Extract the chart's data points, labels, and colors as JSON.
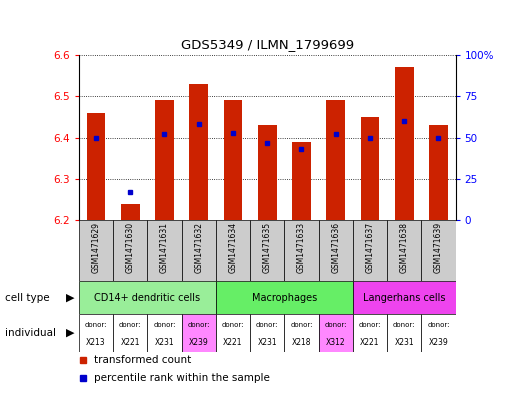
{
  "title": "GDS5349 / ILMN_1799699",
  "samples": [
    "GSM1471629",
    "GSM1471630",
    "GSM1471631",
    "GSM1471632",
    "GSM1471634",
    "GSM1471635",
    "GSM1471633",
    "GSM1471636",
    "GSM1471637",
    "GSM1471638",
    "GSM1471639"
  ],
  "bar_values": [
    6.46,
    6.24,
    6.49,
    6.53,
    6.49,
    6.43,
    6.39,
    6.49,
    6.45,
    6.57,
    6.43
  ],
  "bar_base": 6.2,
  "percentile_values": [
    50,
    17,
    52,
    58,
    53,
    47,
    43,
    52,
    50,
    60,
    50
  ],
  "ylim": [
    6.2,
    6.6
  ],
  "yticks": [
    6.2,
    6.3,
    6.4,
    6.5,
    6.6
  ],
  "right_yticks": [
    0,
    25,
    50,
    75,
    100
  ],
  "right_ylim": [
    0,
    100
  ],
  "bar_color": "#cc2200",
  "percentile_color": "#0000cc",
  "grid_color": "#000000",
  "sample_bg_color": "#cccccc",
  "cell_type_defs": [
    {
      "label": "CD14+ dendritic cells",
      "start": 0,
      "end": 4,
      "color": "#99ee99"
    },
    {
      "label": "Macrophages",
      "start": 4,
      "end": 8,
      "color": "#66ee66"
    },
    {
      "label": "Langerhans cells",
      "start": 8,
      "end": 11,
      "color": "#ee44ee"
    }
  ],
  "ind_donors": [
    "X213",
    "X221",
    "X231",
    "X239",
    "X221",
    "X231",
    "X218",
    "X312",
    "X221",
    "X231",
    "X239"
  ],
  "ind_colors": [
    "#ffffff",
    "#ffffff",
    "#ffffff",
    "#ff88ff",
    "#ffffff",
    "#ffffff",
    "#ffffff",
    "#ff88ff",
    "#ffffff",
    "#ffffff",
    "#ffffff"
  ],
  "bar_width": 0.55
}
